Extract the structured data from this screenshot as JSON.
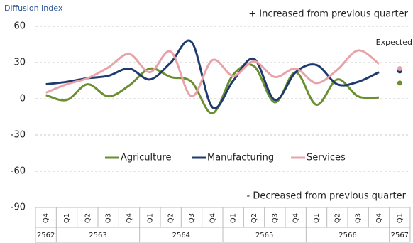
{
  "chart_data": {
    "type": "line",
    "y_label": "Diffusion Index",
    "annotation_top": "+ Increased from previous quarter",
    "annotation_bottom": "- Decreased from previous quarter",
    "expected_label": "Expected",
    "categories": [
      "Q4",
      "Q1",
      "Q2",
      "Q3",
      "Q4",
      "Q1",
      "Q2",
      "Q3",
      "Q4",
      "Q1",
      "Q2",
      "Q3",
      "Q4",
      "Q1",
      "Q2",
      "Q3",
      "Q4",
      "Q1"
    ],
    "years": [
      "2562",
      "2563",
      "2563",
      "2563",
      "2563",
      "2564",
      "2564",
      "2564",
      "2564",
      "2565",
      "2565",
      "2565",
      "2565",
      "2566",
      "2566",
      "2566",
      "2566",
      "2567"
    ],
    "series": [
      {
        "name": "Agriculture",
        "color": "#6b8e2f",
        "values": [
          3,
          -1,
          12,
          2,
          11,
          25,
          18,
          14,
          -12,
          20,
          27,
          -3,
          22,
          -5,
          16,
          2,
          1,
          null
        ],
        "expected": 13
      },
      {
        "name": "Manufacturing",
        "color": "#1f3a6e",
        "values": [
          12,
          14,
          17,
          19,
          25,
          16,
          30,
          47,
          -7,
          15,
          33,
          -1,
          22,
          28,
          12,
          14,
          22,
          null
        ],
        "expected": 23
      },
      {
        "name": "Services",
        "color": "#e8a3a8",
        "values": [
          5,
          12,
          17,
          26,
          37,
          22,
          39,
          2,
          32,
          19,
          31,
          18,
          25,
          13,
          24,
          40,
          29,
          null
        ],
        "expected": 25
      }
    ],
    "ylim": [
      -90,
      60
    ],
    "yticks": [
      -90,
      -60,
      -30,
      0,
      30,
      60
    ],
    "grid": true
  }
}
